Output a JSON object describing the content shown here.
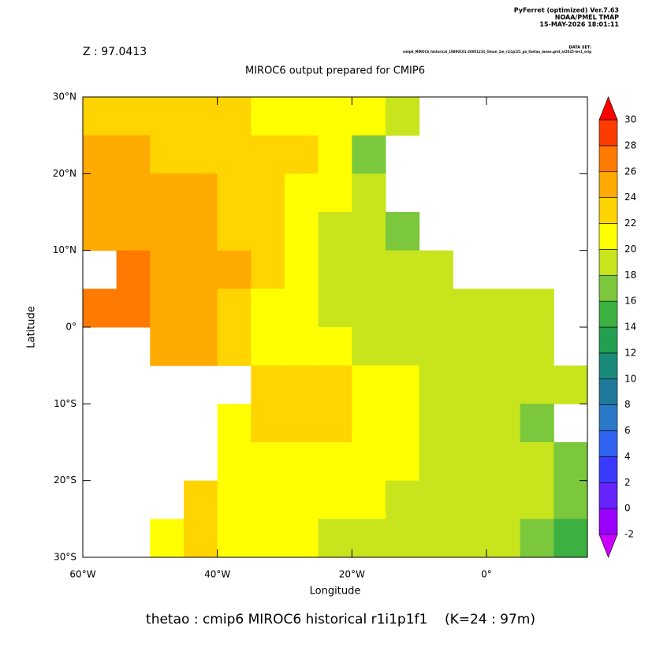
{
  "header": {
    "lines": [
      "PyFerret (optimized) Ver.7.63",
      "NOAA/PMEL TMAP",
      "15-MAY-2026 18:01:11"
    ],
    "dataset_label": "DATA SET:",
    "dataset": "cmip6_MIROC6_historical_19890101-20051231_Omon_1m_r1i1p1f1_gn_thetao_mean.grid_at2025-lev1_orig"
  },
  "chart_data": {
    "type": "heatmap",
    "annotation": "Z : 97.0413",
    "title": "MIROC6 output prepared for CMIP6",
    "caption": "thetao : cmip6 MIROC6 historical r1i1p1f1    (K=24 : 97m)",
    "xlabel": "Longitude",
    "ylabel": "Latitude",
    "xlim": [
      -60,
      15
    ],
    "ylim": [
      -30,
      30
    ],
    "xticks": [
      {
        "value": -60,
        "label": "60°W"
      },
      {
        "value": -40,
        "label": "40°W"
      },
      {
        "value": -20,
        "label": "20°W"
      },
      {
        "value": 0,
        "label": "0°"
      }
    ],
    "yticks": [
      {
        "value": -30,
        "label": "30°S"
      },
      {
        "value": -20,
        "label": "20°S"
      },
      {
        "value": -10,
        "label": "10°S"
      },
      {
        "value": 0,
        "label": "0°"
      },
      {
        "value": 10,
        "label": "10°N"
      },
      {
        "value": 20,
        "label": "20°N"
      },
      {
        "value": 30,
        "label": "30°N"
      }
    ],
    "x": [
      -57.5,
      -52.5,
      -47.5,
      -42.5,
      -37.5,
      -32.5,
      -27.5,
      -22.5,
      -17.5,
      -12.5,
      -7.5,
      -2.5,
      2.5,
      7.5,
      12.5
    ],
    "y": [
      27.5,
      22.5,
      17.5,
      12.5,
      7.5,
      2.5,
      -2.5,
      -7.5,
      -12.5,
      -17.5,
      -22.5,
      -27.5
    ],
    "z": [
      [
        22,
        22,
        22,
        22,
        22,
        21,
        21,
        21,
        20,
        19,
        null,
        null,
        null,
        null,
        null
      ],
      [
        24,
        24,
        23,
        23,
        23,
        22,
        22,
        21,
        17,
        null,
        null,
        null,
        null,
        null,
        null
      ],
      [
        25,
        25,
        24,
        24,
        23,
        22,
        21,
        20,
        18,
        null,
        null,
        null,
        null,
        null,
        null
      ],
      [
        25,
        25,
        25,
        24,
        23,
        22,
        20,
        19,
        18,
        17,
        null,
        null,
        null,
        null,
        null
      ],
      [
        null,
        26,
        25,
        24,
        24,
        22,
        20,
        19,
        18,
        18,
        18,
        null,
        null,
        null,
        null
      ],
      [
        26,
        26,
        25,
        24,
        22,
        21,
        20,
        19,
        19,
        19,
        19,
        19,
        19,
        19,
        null
      ],
      [
        null,
        null,
        25,
        24,
        22,
        21,
        20,
        20,
        19,
        19,
        19,
        19,
        18,
        18,
        null
      ],
      [
        null,
        null,
        null,
        null,
        null,
        22,
        23,
        22,
        21,
        20,
        19,
        19,
        18,
        18,
        18
      ],
      [
        null,
        null,
        null,
        null,
        21,
        22,
        23,
        22,
        21,
        20,
        19,
        19,
        18,
        17,
        null
      ],
      [
        null,
        null,
        null,
        null,
        21,
        20,
        21,
        21,
        21,
        20,
        19,
        19,
        19,
        18,
        17
      ],
      [
        null,
        null,
        null,
        22,
        21,
        20,
        20,
        20,
        20,
        19,
        19,
        19,
        18,
        18,
        16
      ],
      [
        null,
        null,
        21,
        22,
        20,
        20,
        20,
        19,
        19,
        19,
        18,
        18,
        18,
        17,
        15
      ]
    ],
    "colorbar": {
      "levels": [
        -2,
        0,
        2,
        4,
        6,
        8,
        10,
        12,
        14,
        16,
        18,
        20,
        22,
        24,
        26,
        28,
        30
      ],
      "colors": [
        "#cc00ff",
        "#9900ff",
        "#6622ff",
        "#3a3aff",
        "#2f63f0",
        "#2a78c8",
        "#20789a",
        "#1a8a7a",
        "#22a050",
        "#3cb040",
        "#7cc83c",
        "#c8e41c",
        "#ffff00",
        "#ffd400",
        "#ffaa00",
        "#ff7a00",
        "#ff3c00",
        "#ff0000"
      ]
    }
  }
}
